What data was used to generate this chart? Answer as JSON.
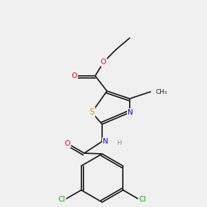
{
  "bg_color": "#f0f0f0",
  "bond_color": "#1a1a1a",
  "bond_lw": 1.3,
  "dbo": 0.012,
  "atom_colors": {
    "O": "#ff0000",
    "N": "#0000cc",
    "S": "#bbaa00",
    "Cl": "#00aa00",
    "H": "#888888",
    "C": "#1a1a1a"
  },
  "fs": 7.5,
  "fs_sub": 6.5
}
